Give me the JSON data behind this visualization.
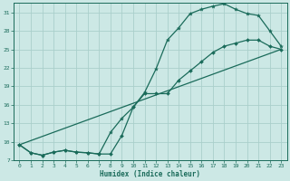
{
  "bg_color": "#cce8e5",
  "grid_color": "#aacfcb",
  "line_color": "#1a6b5a",
  "xlabel": "Humidex (Indice chaleur)",
  "xlim": [
    -0.5,
    23.5
  ],
  "ylim": [
    7,
    32.5
  ],
  "yticks": [
    7,
    10,
    13,
    16,
    19,
    22,
    25,
    28,
    31
  ],
  "xticks": [
    0,
    1,
    2,
    3,
    4,
    5,
    6,
    7,
    8,
    9,
    10,
    11,
    12,
    13,
    14,
    15,
    16,
    17,
    18,
    19,
    20,
    21,
    22,
    23
  ],
  "line1_x": [
    0,
    1,
    2,
    3,
    4,
    5,
    6,
    7,
    8,
    9,
    10,
    11,
    12,
    13,
    14,
    15,
    16,
    17,
    18,
    19,
    20,
    21,
    22,
    23
  ],
  "line1_y": [
    9.5,
    8.2,
    7.8,
    8.3,
    8.6,
    8.3,
    8.2,
    8.0,
    11.5,
    13.8,
    15.6,
    18.0,
    21.8,
    26.5,
    28.5,
    30.8,
    31.5,
    32.0,
    32.4,
    31.5,
    30.8,
    30.5,
    28.0,
    25.5
  ],
  "line2_x": [
    0,
    1,
    2,
    3,
    4,
    5,
    6,
    7,
    8,
    9,
    10,
    11,
    12,
    13,
    14,
    15,
    16,
    17,
    18,
    19,
    20,
    21,
    22,
    23
  ],
  "line2_y": [
    9.5,
    8.2,
    7.8,
    8.3,
    8.6,
    8.3,
    8.2,
    8.0,
    8.0,
    11.0,
    15.6,
    17.8,
    17.8,
    17.8,
    20.0,
    21.5,
    23.0,
    24.5,
    25.5,
    26.0,
    26.5,
    26.5,
    25.5,
    25.0
  ],
  "line3_x": [
    0,
    23
  ],
  "line3_y": [
    9.5,
    25.0
  ],
  "figsize": [
    3.2,
    2.0
  ],
  "dpi": 100
}
